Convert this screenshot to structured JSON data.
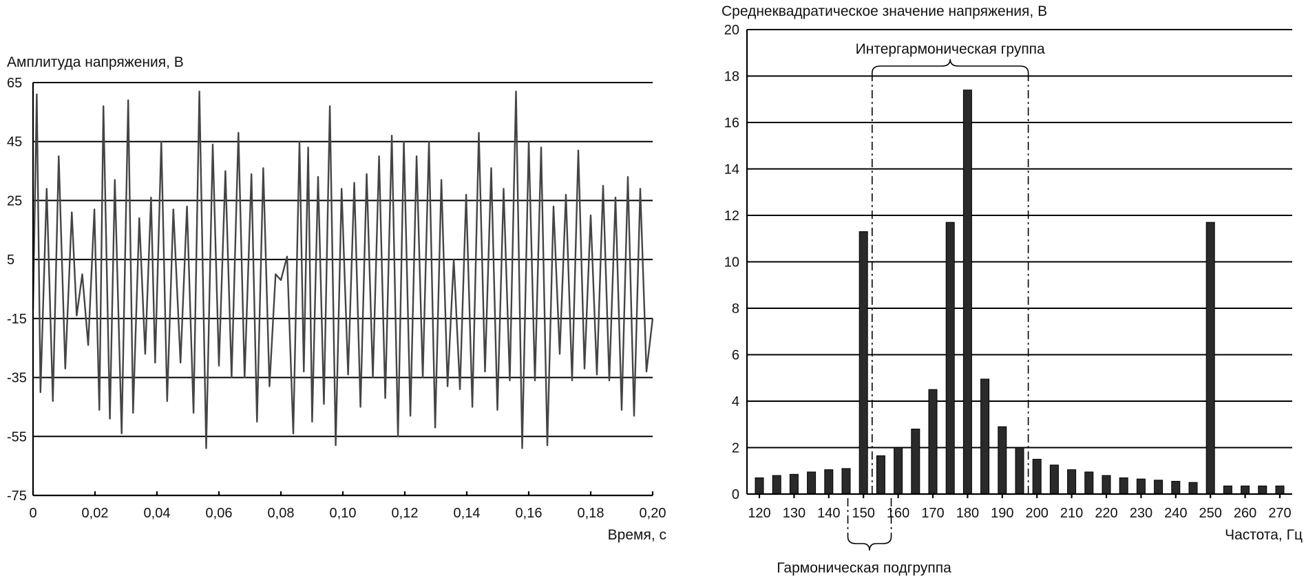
{
  "chart_data": [
    {
      "type": "line",
      "ylabel": "Амплитуда напряжения, В",
      "xlabel": "Время, с",
      "xlim": [
        0,
        0.2
      ],
      "ylim": [
        -75,
        65
      ],
      "x_tick_labels": [
        "0",
        "0,02",
        "0,04",
        "0,06",
        "0,08",
        "0,10",
        "0,12",
        "0,14",
        "0,16",
        "0,18",
        "0,20"
      ],
      "y_tick_labels": [
        "65",
        "45",
        "25",
        "5",
        "-15",
        "-35",
        "-55",
        "-75"
      ],
      "grid": "horizontal",
      "series": [
        {
          "x": [
            0,
            0.0012,
            0.0024,
            0.0044,
            0.0064,
            0.0083,
            0.0104,
            0.0125,
            0.0141,
            0.0159,
            0.0178,
            0.0198,
            0.0214,
            0.0227,
            0.0248,
            0.0264,
            0.0286,
            0.0307,
            0.0323,
            0.0343,
            0.0362,
            0.0381,
            0.0394,
            0.0414,
            0.0433,
            0.0453,
            0.0476,
            0.0497,
            0.0518,
            0.0537,
            0.0559,
            0.058,
            0.06,
            0.0621,
            0.0641,
            0.0663,
            0.0683,
            0.0705,
            0.0723,
            0.0743,
            0.0763,
            0.0783,
            0.08,
            0.082,
            0.084,
            0.086,
            0.0874,
            0.0888,
            0.0901,
            0.092,
            0.0939,
            0.0958,
            0.0977,
            0.0996,
            0.1017,
            0.1037,
            0.1057,
            0.1077,
            0.1097,
            0.1117,
            0.1137,
            0.1158,
            0.1178,
            0.1197,
            0.1218,
            0.1238,
            0.1258,
            0.1278,
            0.1298,
            0.1318,
            0.1338,
            0.1358,
            0.1378,
            0.1398,
            0.1418,
            0.1439,
            0.1459,
            0.1479,
            0.1499,
            0.1519,
            0.1539,
            0.1559,
            0.1579,
            0.16,
            0.162,
            0.164,
            0.166,
            0.168,
            0.17,
            0.172,
            0.174,
            0.176,
            0.178,
            0.18,
            0.182,
            0.184,
            0.186,
            0.188,
            0.19,
            0.192,
            0.194,
            0.196,
            0.198,
            0.2
          ],
          "y": [
            -12,
            61,
            -40,
            29,
            -43,
            40,
            -32,
            21,
            -14,
            0,
            -24,
            22,
            -46,
            57,
            -49,
            32,
            -54,
            59,
            -47,
            19,
            -27,
            26,
            -30,
            45,
            -43,
            22,
            -30,
            23,
            -47,
            62,
            -59,
            44,
            -31,
            35,
            -35,
            48,
            -35,
            34,
            -50,
            36,
            -38,
            0,
            -2,
            6,
            -54,
            45,
            -33,
            43,
            -50,
            33,
            -44,
            57,
            -58,
            29,
            -34,
            31,
            -45,
            34,
            -35,
            40,
            -42,
            47,
            -55,
            45,
            -48,
            40,
            -35,
            45,
            -52,
            32,
            -38,
            5,
            -39,
            27,
            -45,
            48,
            -33,
            36,
            -46,
            29,
            -36,
            62,
            -59,
            45,
            -36,
            43,
            -58,
            23,
            -27,
            27,
            -36,
            42,
            -32,
            20,
            -34,
            30,
            -36,
            26,
            -46,
            33,
            -48,
            29,
            -33,
            -15
          ]
        }
      ]
    },
    {
      "type": "bar",
      "ylabel": "Среднеквадратическое значение напряжения, В",
      "xlabel": "Частота, Гц",
      "xlim": [
        120,
        270
      ],
      "ylim": [
        0,
        20
      ],
      "x_tick_labels": [
        "120",
        "130",
        "140",
        "150",
        "160",
        "170",
        "180",
        "190",
        "200",
        "210",
        "220",
        "230",
        "240",
        "250",
        "260",
        "270"
      ],
      "y_tick_labels": [
        "0",
        "2",
        "4",
        "6",
        "8",
        "10",
        "12",
        "14",
        "16",
        "18",
        "20"
      ],
      "grid": "horizontal",
      "x": [
        120,
        125,
        130,
        135,
        140,
        145,
        150,
        155,
        160,
        165,
        170,
        175,
        180,
        185,
        190,
        195,
        200,
        205,
        210,
        215,
        220,
        225,
        230,
        235,
        240,
        245,
        250,
        255,
        260,
        265,
        270
      ],
      "values": [
        0.7,
        0.8,
        0.85,
        0.95,
        1.05,
        1.1,
        11.3,
        1.65,
        2.0,
        2.8,
        4.5,
        11.7,
        17.4,
        4.95,
        2.9,
        2.0,
        1.5,
        1.25,
        1.05,
        0.95,
        0.8,
        0.7,
        0.65,
        0.6,
        0.55,
        0.5,
        11.7,
        0.35,
        0.35,
        0.35,
        0.35
      ],
      "annotations": {
        "interharmonic_group": "Интергармоническая группа",
        "harmonic_subgroup": "Гармоническая подгруппа"
      }
    }
  ]
}
